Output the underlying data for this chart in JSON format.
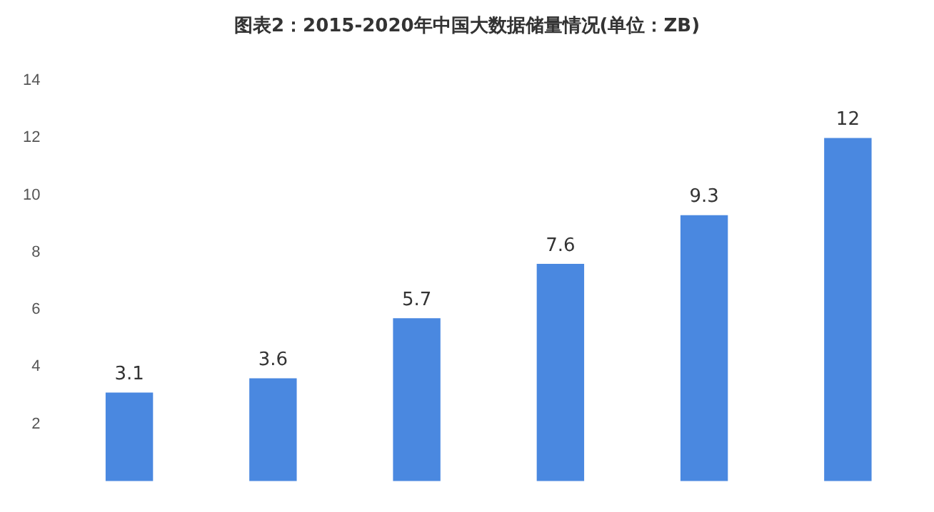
{
  "chart_data": {
    "type": "bar",
    "title": "图表2：2015-2020年中国大数据储量情况(单位：ZB)",
    "categories": [
      null,
      null,
      null,
      null,
      null,
      null
    ],
    "values": [
      3.1,
      3.6,
      5.7,
      7.6,
      9.3,
      12
    ],
    "color": "#4a88e0",
    "ylim": [
      0,
      14
    ],
    "yticks": [
      2,
      4,
      6,
      8,
      10,
      12,
      14
    ],
    "grid": false,
    "data_labels": true
  }
}
